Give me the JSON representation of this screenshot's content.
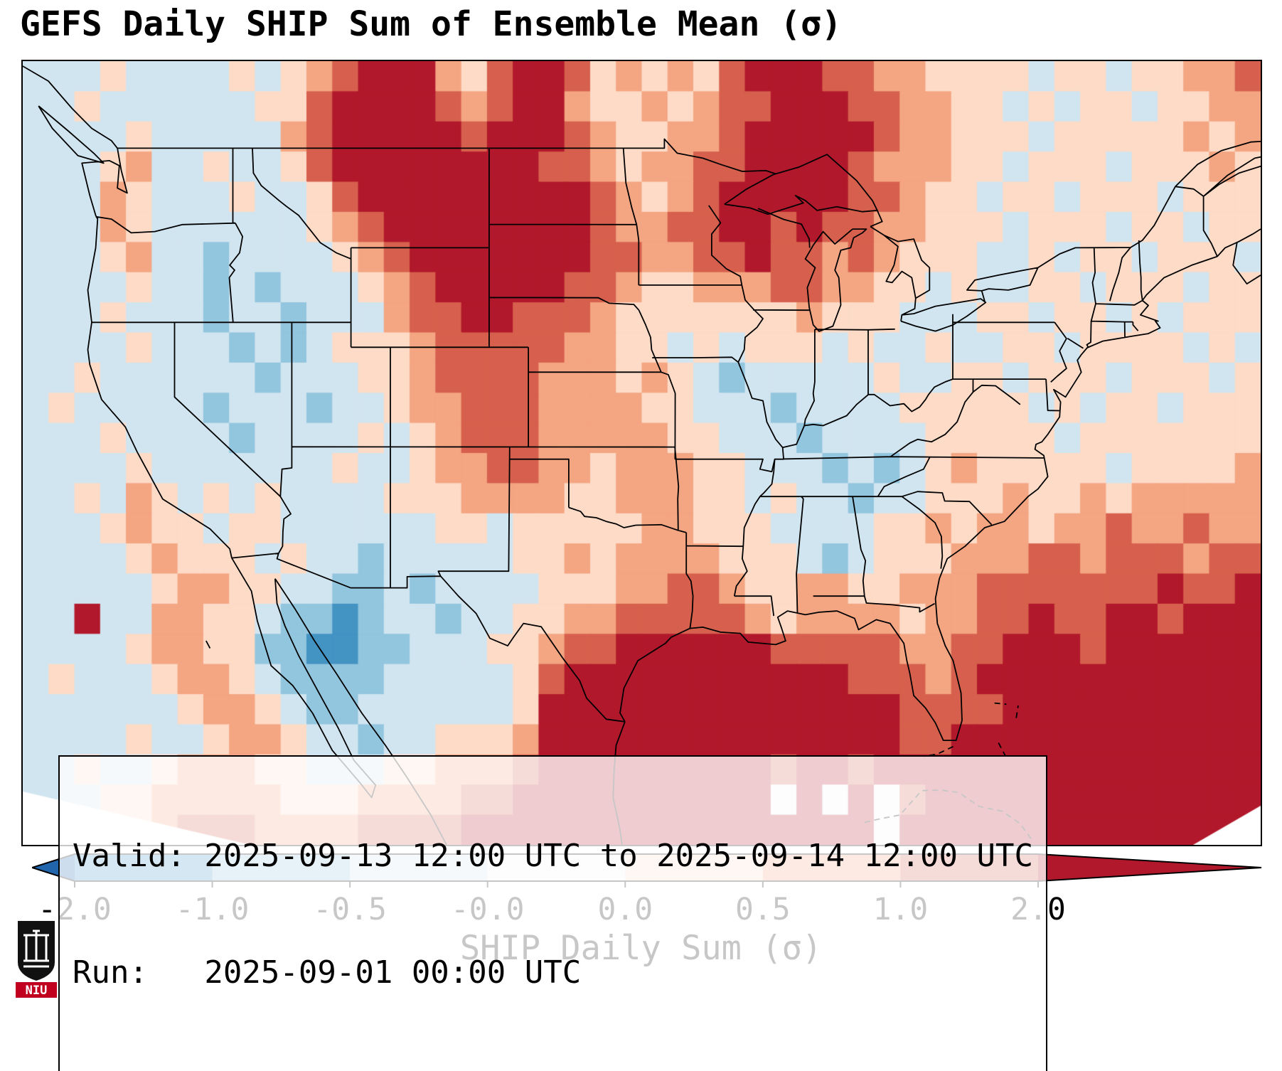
{
  "title": "GEFS Daily SHIP Sum of Ensemble Mean (σ)",
  "info_box": {
    "valid_label": "Valid:",
    "valid_value": "2025-09-13 12:00 UTC to 2025-09-14 12:00 UTC",
    "run_label": "Run:",
    "run_value": "2025-09-01 00:00 UTC"
  },
  "colorbar": {
    "label": "SHIP Daily Sum (σ)",
    "tick_labels": [
      "-2.0",
      "-1.0",
      "-0.5",
      "-0.0",
      "0.0",
      "0.5",
      "1.0",
      "2.0"
    ],
    "under_color": "#2166ac",
    "over_color": "#b2182b",
    "segment_colors": [
      "#4393c3",
      "#92c5de",
      "#d1e5f0",
      "#f7f7f7",
      "#fddbc7",
      "#f4a582",
      "#d6604d"
    ]
  },
  "logo": {
    "text": "NIU"
  },
  "chart_data": {
    "type": "heatmap",
    "title": "GEFS Daily SHIP Sum of Ensemble Mean (σ)",
    "colorbar_label": "SHIP Daily Sum (σ)",
    "valid": "2025-09-13 12:00 UTC to 2025-09-14 12:00 UTC",
    "run": "2025-09-01 00:00 UTC",
    "units": "sigma (standard anomaly)",
    "boundaries": [
      -2,
      -1,
      -0.5,
      0,
      0,
      0.5,
      1,
      2
    ],
    "extent": {
      "lon_min": -127.7,
      "lon_max": -64.9,
      "lat_min": 21.0,
      "lat_max": 52.5
    },
    "grid_shape": [
      26,
      48
    ],
    "level_sigma": {
      "0": "< -2",
      "1": "-2 to -1",
      "2": "-1 to -0.5",
      "3": "-0.5 to -0",
      "4": "≈ 0",
      "5": "0 to 0.5",
      "6": "0.5 to 1",
      "7": "1 to 2",
      "8": "> 2"
    },
    "level_colors": {
      "0": "#2166ac",
      "1": "#4393c3",
      "2": "#92c5de",
      "3": "#d1e5f0",
      "4": "#f7f7f7",
      "5": "#fddbc7",
      "6": "#f4a582",
      "7": "#d6604d",
      "8": "#b2182b"
    },
    "grid_rows": [
      "333533335356788865788756565788877665555355355667",
      "335333333557888876788655656778887766553535535566",
      "333353333367888887888765566788888766555355555656",
      "333563353357888888887765667788887666553555355565",
      "333653335335788888888876567888887765535535553555",
      "333653333335678888888876677887877665553555355355",
      "333563323333567888888877667787767655533535535553",
      "333353323233356788888776556667766553533553555355",
      "333533323323336778877765555555655533355355353555",
      "333353332323555677777665535355535335335535555353",
      "335333333233355677776665653233333533553555355535",
      "353333323332335667776666553332333355555353553555",
      "333533332333353567776666655333233335555535555555",
      "333353333333533566776656665533323235655555355556",
      "335365353533335556666556665535332335556556566666",
      "333565535533333355355555665553333556566566766766",
      "333356555353323333355656666555323555666776777677",
      "333335665533223233335556677655665566677777778778",
      "338336655322123323355667777765666656677877887888",
      "333356655221122333556778888887777766778887888888",
      "353335665322223333357888888888887776788888888888",
      "333333566532233333358888888888888877778888888888",
      "333353356653323355568888888888888877888888888888",
      "335335666553335566678888888887887888888888888888",
      "333556666655566667788888888884848478888888888888",
      "443356777666677778888888888888888488888888888888"
    ]
  }
}
